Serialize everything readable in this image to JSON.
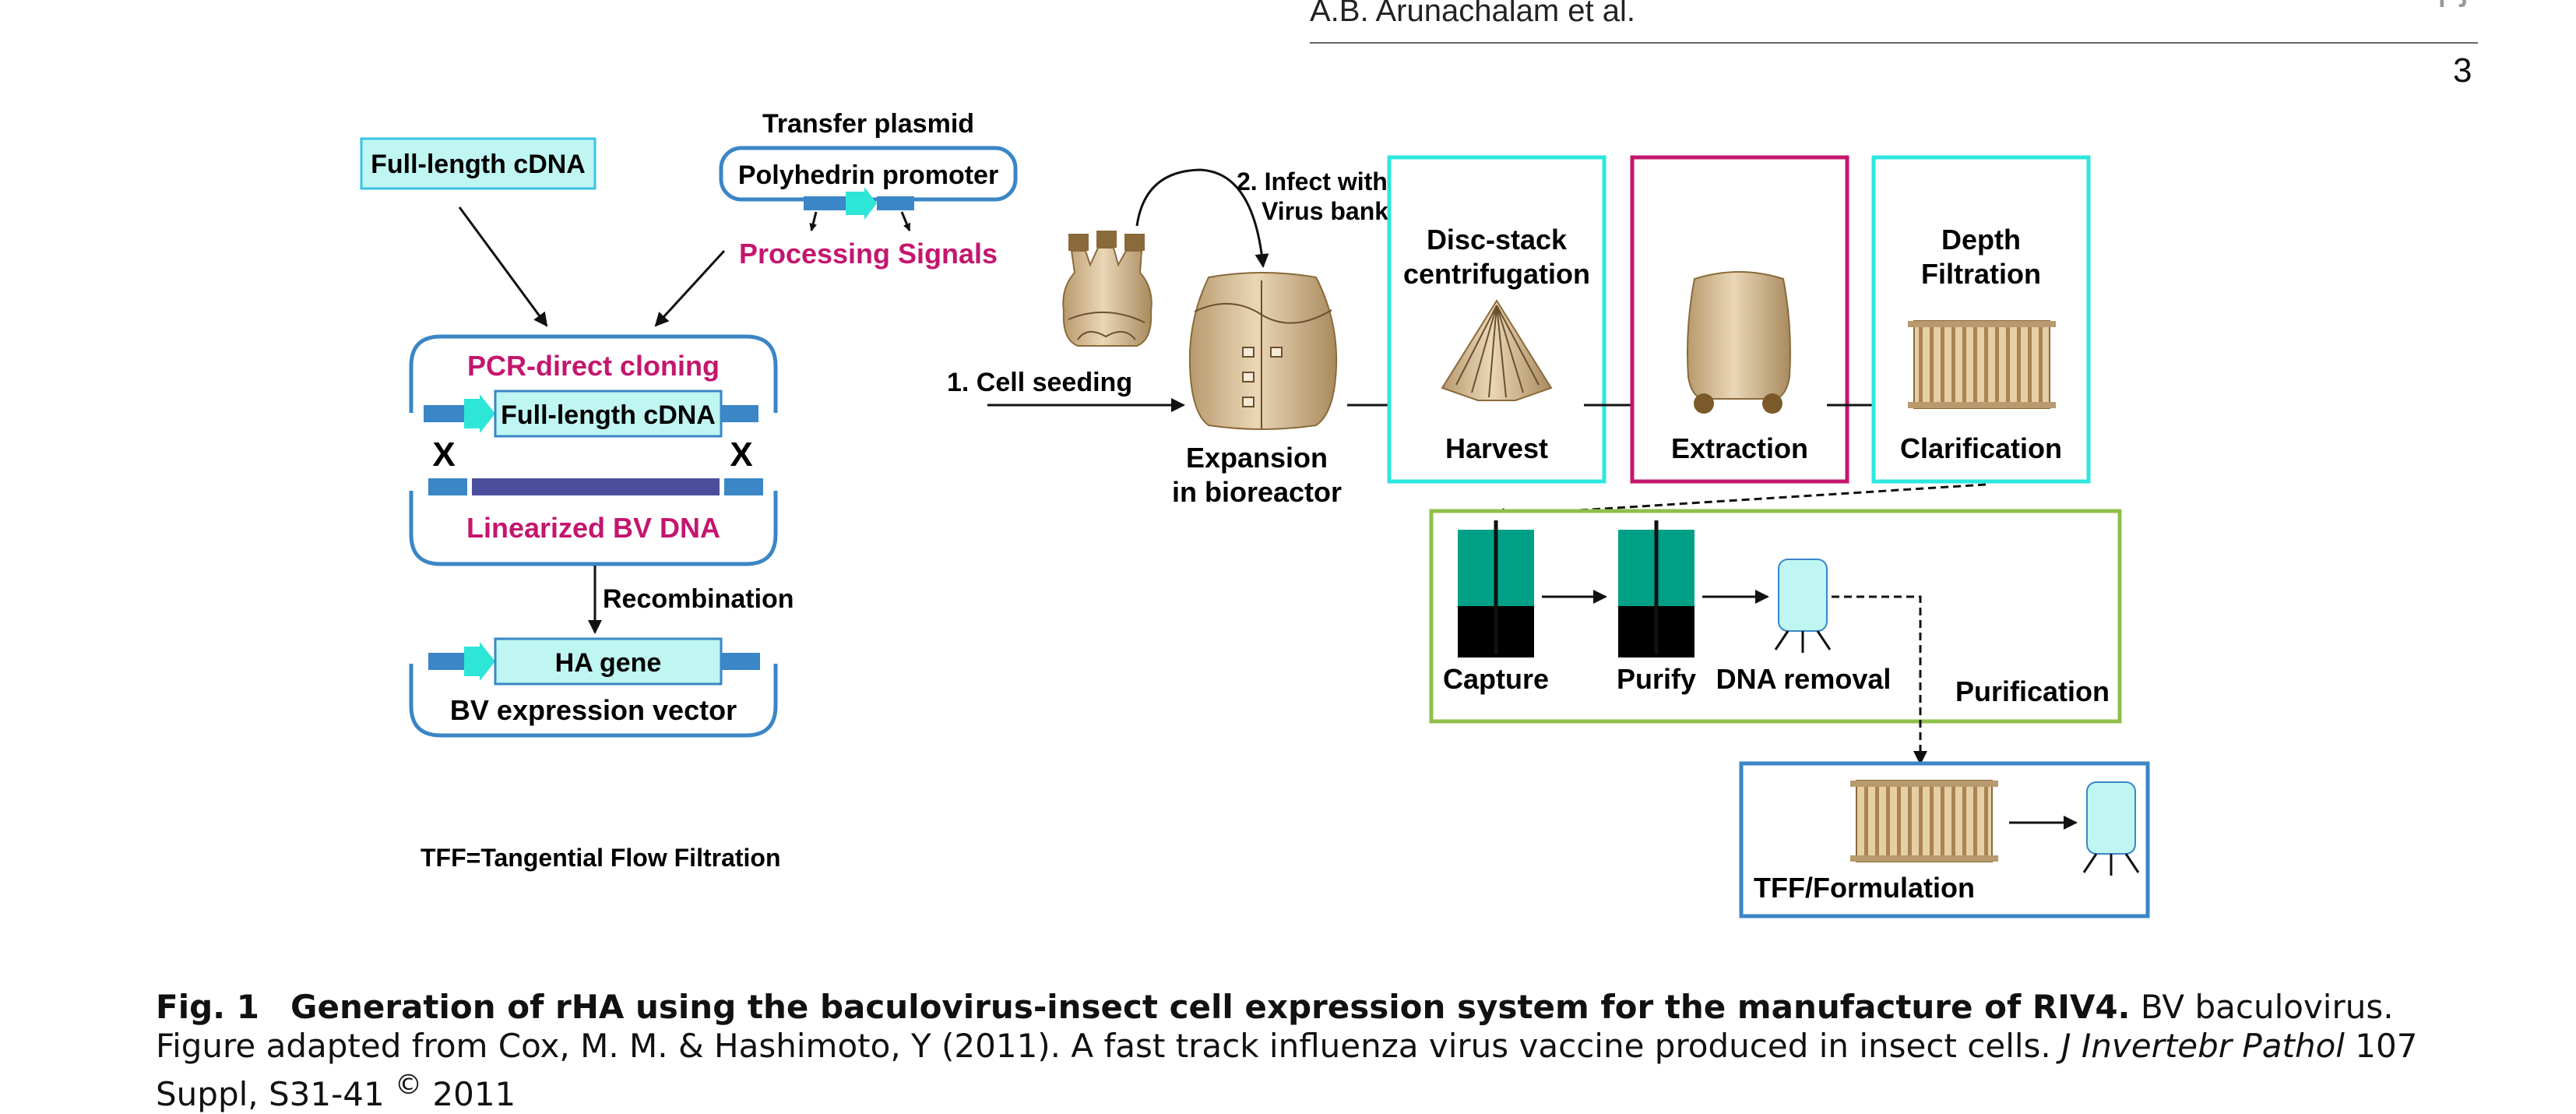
{
  "header": {
    "author": "A.B. Arunachalam et al.",
    "page_number": "3",
    "logo": "npj"
  },
  "figure": {
    "left": {
      "full_length_cdna_box": "Full-length cDNA",
      "transfer_plasmid_title": "Transfer plasmid",
      "polyhedrin_promoter": "Polyhedrin promoter",
      "processing_signals": "Processing Signals",
      "pcr_direct_cloning": "PCR-direct cloning",
      "full_length_cdna_insert": "Full-length cDNA",
      "cross_left": "X",
      "cross_right": "X",
      "linearized_bv_dna": "Linearized BV DNA",
      "recombination": "Recombination",
      "ha_gene": "HA gene",
      "bv_expression_vector": "BV expression vector",
      "tff_note": "TFF=Tangential Flow Filtration"
    },
    "right": {
      "infect_line1": "2. Infect with",
      "infect_line2": "Virus bank",
      "cell_seeding": "1. Cell seeding",
      "expansion_line1": "Expansion",
      "expansion_line2": "in bioreactor",
      "disc_stack_line1": "Disc-stack",
      "disc_stack_line2": "centrifugation",
      "harvest": "Harvest",
      "extraction": "Extraction",
      "depth_line1": "Depth",
      "depth_line2": "Filtration",
      "clarification": "Clarification",
      "capture": "Capture",
      "purify": "Purify",
      "dna_removal": "DNA removal",
      "purification": "Purification",
      "tff_formulation": "TFF/Formulation"
    },
    "colors": {
      "cyan_box_border": "#2ee6e0",
      "magenta": "#c4166e",
      "blue_outline": "#3a86c6",
      "green_box": "#8fbf4a",
      "blue_box": "#3a86c6",
      "teal_column": "#00a087",
      "light_cyan": "#bff6f2",
      "tan": "#d8c09a"
    },
    "icons": [
      "flask-icon",
      "bioreactor-icon",
      "centrifuge-icon",
      "extraction-tank-icon",
      "filter-cartridge-icon",
      "chromatography-column-icon",
      "storage-vessel-icon"
    ]
  },
  "caption": {
    "label": "Fig. 1",
    "title": "Generation of rHA using the baculovirus-insect cell expression system for the manufacture of RIV4.",
    "text1": " BV baculovirus. Figure adapted from Cox, M. M. & Hashimoto, Y (2011). A fast track influenza virus vaccine produced in insect cells. ",
    "journal": "J Invertebr Pathol",
    "text2": " 107 Suppl, S31-41 ",
    "copyright": "©",
    "year": " 2011"
  }
}
